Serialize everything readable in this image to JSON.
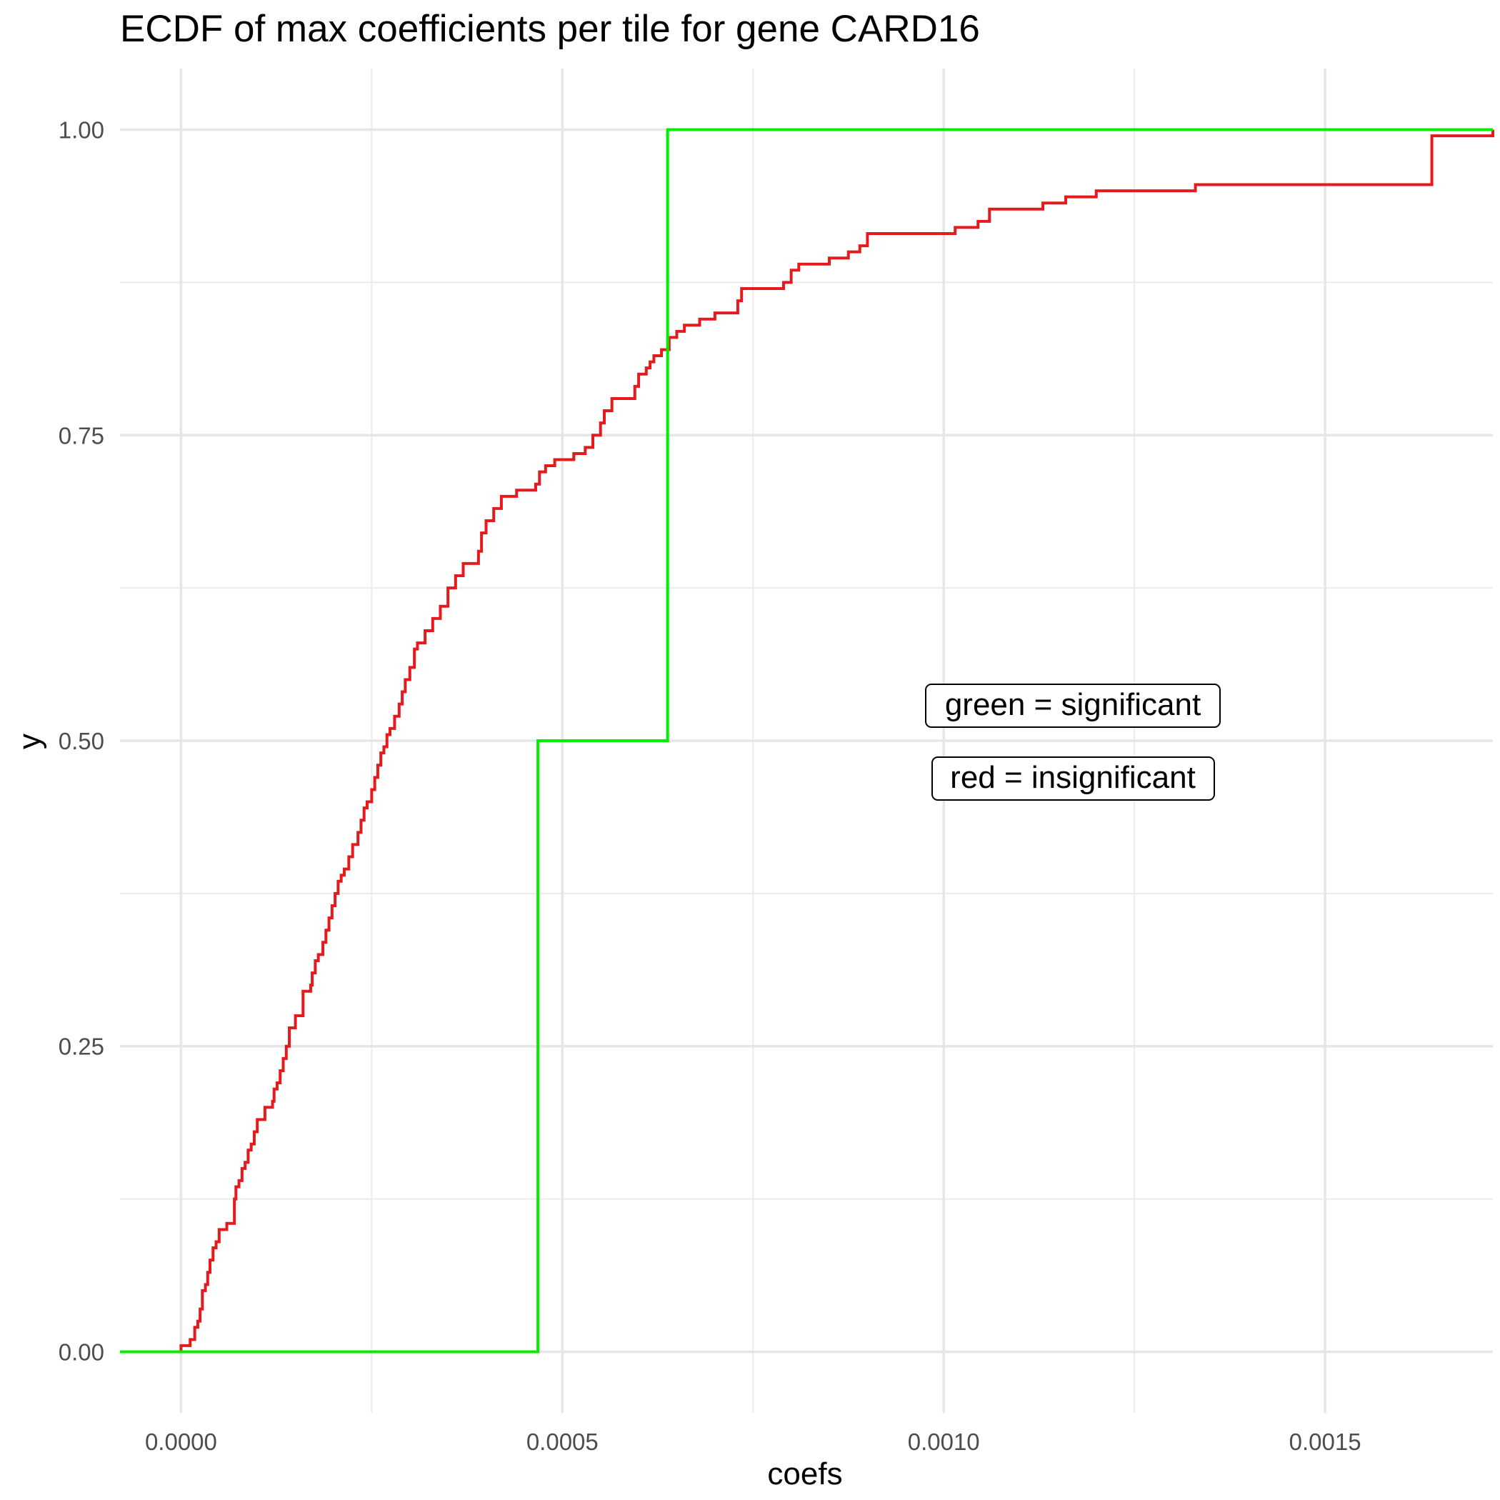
{
  "chart_data": {
    "type": "line",
    "title": "ECDF of max coefficients per tile for gene CARD16",
    "xlabel": "coefs",
    "ylabel": "y",
    "xlim": [
      -8e-05,
      0.00172
    ],
    "ylim": [
      -0.05,
      1.05
    ],
    "x_ticks": [
      0.0,
      0.0005,
      0.001,
      0.0015
    ],
    "x_tick_labels": [
      "0.0000",
      "0.0005",
      "0.0010",
      "0.0015"
    ],
    "y_ticks": [
      0.0,
      0.25,
      0.5,
      0.75,
      1.0
    ],
    "y_tick_labels": [
      "0.00",
      "0.25",
      "0.50",
      "0.75",
      "1.00"
    ],
    "grid": true,
    "annotations": [
      "green = significant",
      "red = insignificant"
    ],
    "series": [
      {
        "color": "#e41a1c",
        "step": true,
        "x": [
          -8e-05,
          0.0,
          1.2e-05,
          1.8e-05,
          2.2e-05,
          2.5e-05,
          2.8e-05,
          3.2e-05,
          3.5e-05,
          3.8e-05,
          4.2e-05,
          4.6e-05,
          5e-05,
          6e-05,
          7e-05,
          7.2e-05,
          7.6e-05,
          8e-05,
          8.4e-05,
          8.8e-05,
          9.2e-05,
          9.6e-05,
          0.0001,
          0.00011,
          0.00012,
          0.000122,
          0.000126,
          0.00013,
          0.000134,
          0.000138,
          0.000142,
          0.00015,
          0.00016,
          0.00017,
          0.000172,
          0.000176,
          0.00018,
          0.000186,
          0.00019,
          0.000194,
          0.000198,
          0.000202,
          0.000206,
          0.00021,
          0.000214,
          0.00022,
          0.000225,
          0.000232,
          0.000236,
          0.00024,
          0.000244,
          0.00025,
          0.000254,
          0.000258,
          0.000262,
          0.000266,
          0.00027,
          0.000274,
          0.00028,
          0.000286,
          0.00029,
          0.000294,
          0.0003,
          0.000306,
          0.00031,
          0.00032,
          0.00033,
          0.00034,
          0.00035,
          0.00036,
          0.00037,
          0.00039,
          0.000394,
          0.0004,
          0.00041,
          0.00042,
          0.00044,
          0.000465,
          0.00047,
          0.000478,
          0.00049,
          0.000515,
          0.00053,
          0.00054,
          0.00055,
          0.000555,
          0.000565,
          0.000595,
          0.0006,
          0.00061,
          0.000615,
          0.00062,
          0.00063,
          0.00064,
          0.00065,
          0.00066,
          0.00068,
          0.0007,
          0.00073,
          0.000735,
          0.00079,
          0.0008,
          0.00081,
          0.00085,
          0.000875,
          0.00089,
          0.0009,
          0.001015,
          0.001045,
          0.00106,
          0.00113,
          0.00116,
          0.0012,
          0.00133,
          0.00164,
          0.00172
        ],
        "y": [
          0.0,
          0.005,
          0.01,
          0.02,
          0.025,
          0.035,
          0.05,
          0.055,
          0.065,
          0.075,
          0.085,
          0.09,
          0.1,
          0.105,
          0.125,
          0.135,
          0.14,
          0.15,
          0.155,
          0.165,
          0.17,
          0.18,
          0.19,
          0.2,
          0.205,
          0.215,
          0.22,
          0.23,
          0.24,
          0.25,
          0.265,
          0.275,
          0.295,
          0.3,
          0.31,
          0.32,
          0.325,
          0.335,
          0.345,
          0.355,
          0.365,
          0.375,
          0.385,
          0.39,
          0.395,
          0.405,
          0.415,
          0.425,
          0.435,
          0.445,
          0.45,
          0.46,
          0.47,
          0.48,
          0.49,
          0.495,
          0.505,
          0.51,
          0.52,
          0.53,
          0.54,
          0.55,
          0.56,
          0.575,
          0.58,
          0.59,
          0.6,
          0.61,
          0.625,
          0.635,
          0.645,
          0.655,
          0.67,
          0.68,
          0.69,
          0.7,
          0.705,
          0.71,
          0.72,
          0.725,
          0.73,
          0.735,
          0.74,
          0.75,
          0.76,
          0.77,
          0.78,
          0.79,
          0.8,
          0.805,
          0.81,
          0.815,
          0.82,
          0.83,
          0.835,
          0.84,
          0.845,
          0.85,
          0.86,
          0.87,
          0.875,
          0.885,
          0.89,
          0.895,
          0.9,
          0.905,
          0.915,
          0.92,
          0.925,
          0.935,
          0.94,
          0.945,
          0.95,
          0.955,
          0.995,
          1.0
        ]
      },
      {
        "color": "#00ee00",
        "step": true,
        "x": [
          -8e-05,
          0.000468,
          0.000638,
          0.00172
        ],
        "y": [
          0.0,
          0.5,
          1.0,
          1.0
        ]
      }
    ]
  }
}
